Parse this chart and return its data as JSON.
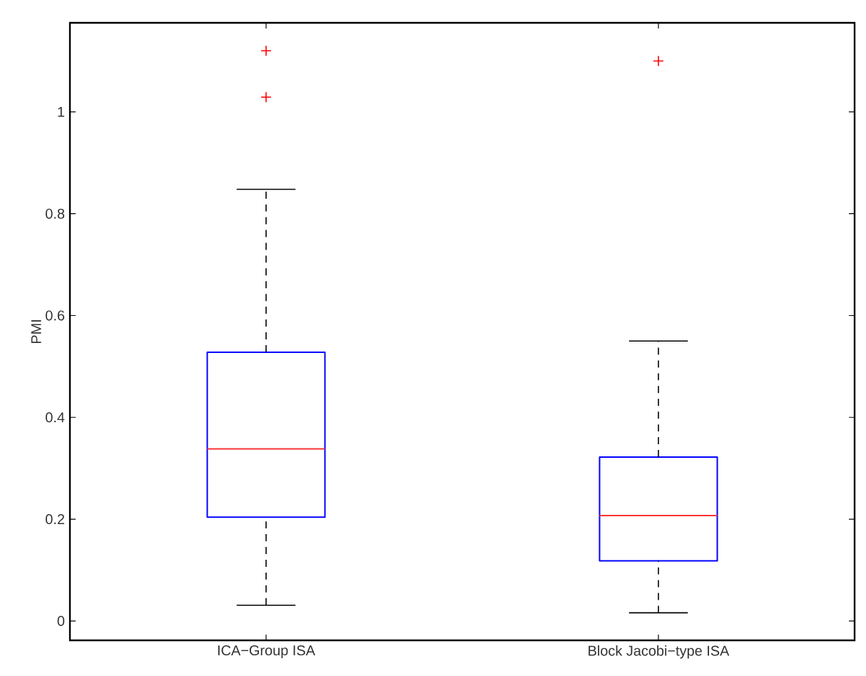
{
  "chart_data": {
    "type": "box",
    "ylabel": "PMI",
    "categories": [
      "ICA−Group ISA",
      "Block Jacobi−type ISA"
    ],
    "boxes": [
      {
        "low": 0.031,
        "q1": 0.204,
        "median": 0.338,
        "q3": 0.528,
        "high": 0.848,
        "outliers": [
          1.029,
          1.12
        ]
      },
      {
        "low": 0.016,
        "q1": 0.118,
        "median": 0.207,
        "q3": 0.322,
        "high": 0.55,
        "outliers": [
          1.1
        ]
      }
    ],
    "ylim": [
      -0.038,
      1.175
    ],
    "yticks": [
      0,
      0.2,
      0.4,
      0.6,
      0.8,
      1
    ]
  }
}
